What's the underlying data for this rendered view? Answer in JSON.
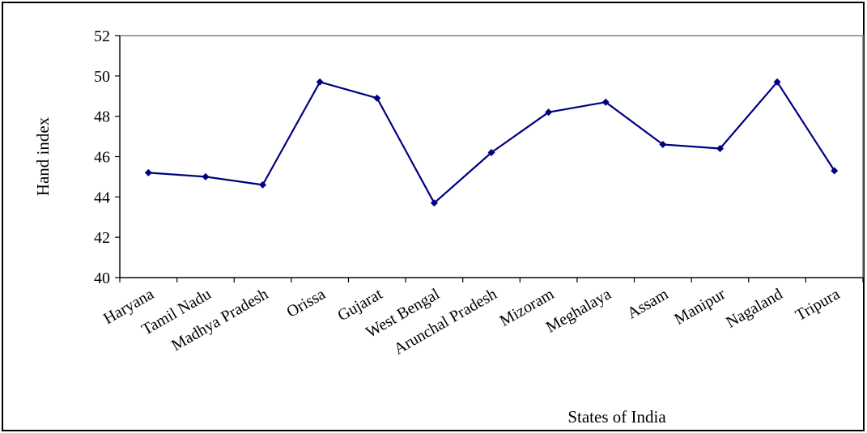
{
  "chart_data": {
    "type": "line",
    "title": "",
    "xlabel": "States of India",
    "ylabel": "Hand index",
    "categories": [
      "Haryana",
      "Tamil Nadu",
      "Madhya Pradesh",
      "Orissa",
      "Gujarat",
      "West Bengal",
      "Arunchal Pradesh",
      "Mizoram",
      "Meghalaya",
      "Assam",
      "Manipur",
      "Nagaland",
      "Tripura"
    ],
    "series": [
      {
        "values": [
          45.2,
          45.0,
          44.6,
          49.7,
          48.9,
          43.7,
          46.2,
          48.2,
          48.7,
          46.6,
          46.4,
          49.7,
          45.3
        ],
        "color": "#000080",
        "marker": "diamond"
      }
    ],
    "ylim": [
      40,
      52
    ],
    "yticks": [
      40,
      42,
      44,
      46,
      48,
      50,
      52
    ],
    "grid": false,
    "legend": "none",
    "plot_border_color": "#808080",
    "frame_color": "#000000"
  }
}
